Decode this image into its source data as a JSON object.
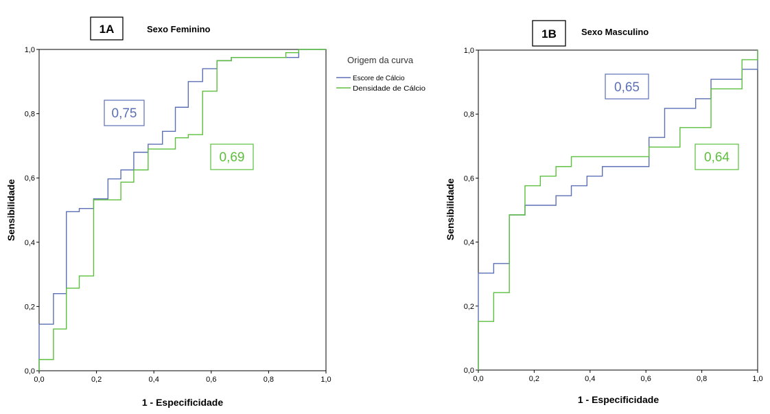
{
  "colors": {
    "escore": "#5b6fb5",
    "densidade": "#5bbf3c"
  },
  "chart_data": [
    {
      "type": "line",
      "panel": "1A",
      "title": "Sexo Feminino",
      "xlabel": "1 - Especificidade",
      "ylabel": "Sensibilidade",
      "xlim": [
        0,
        1
      ],
      "ylim": [
        0,
        1
      ],
      "xticks": [
        "0,0",
        "0,2",
        "0,4",
        "0,6",
        "0,8",
        "1,0"
      ],
      "yticks": [
        "0,0",
        "0,2",
        "0,4",
        "0,6",
        "0,8",
        "1,0"
      ],
      "grid": false,
      "legend": {
        "title": "Origem da curva",
        "placement": "top-right",
        "entries": [
          "Escore de Cálcio",
          "Densidade de Cálcio"
        ]
      },
      "annotations": [
        {
          "text": "0,75",
          "series": "escore"
        },
        {
          "text": "0,69",
          "series": "densidade"
        }
      ],
      "series": [
        {
          "name": "Escore de Cálcio",
          "key": "escore",
          "points": [
            [
              0,
              0
            ],
            [
              0,
              0.145
            ],
            [
              0.05,
              0.145
            ],
            [
              0.05,
              0.24
            ],
            [
              0.095,
              0.24
            ],
            [
              0.095,
              0.495
            ],
            [
              0.14,
              0.495
            ],
            [
              0.14,
              0.505
            ],
            [
              0.19,
              0.505
            ],
            [
              0.19,
              0.535
            ],
            [
              0.24,
              0.535
            ],
            [
              0.24,
              0.597
            ],
            [
              0.285,
              0.597
            ],
            [
              0.285,
              0.625
            ],
            [
              0.33,
              0.625
            ],
            [
              0.33,
              0.68
            ],
            [
              0.38,
              0.68
            ],
            [
              0.38,
              0.705
            ],
            [
              0.43,
              0.705
            ],
            [
              0.43,
              0.745
            ],
            [
              0.475,
              0.745
            ],
            [
              0.475,
              0.82
            ],
            [
              0.52,
              0.82
            ],
            [
              0.52,
              0.9
            ],
            [
              0.57,
              0.9
            ],
            [
              0.57,
              0.94
            ],
            [
              0.62,
              0.94
            ],
            [
              0.62,
              0.965
            ],
            [
              0.67,
              0.965
            ],
            [
              0.67,
              0.975
            ],
            [
              0.905,
              0.975
            ],
            [
              0.905,
              1.0
            ],
            [
              1.0,
              1.0
            ]
          ]
        },
        {
          "name": "Densidade de Cálcio",
          "key": "densidade",
          "points": [
            [
              0,
              0
            ],
            [
              0,
              0.035
            ],
            [
              0.05,
              0.035
            ],
            [
              0.05,
              0.13
            ],
            [
              0.095,
              0.13
            ],
            [
              0.095,
              0.257
            ],
            [
              0.14,
              0.257
            ],
            [
              0.14,
              0.295
            ],
            [
              0.19,
              0.295
            ],
            [
              0.19,
              0.532
            ],
            [
              0.285,
              0.532
            ],
            [
              0.285,
              0.587
            ],
            [
              0.33,
              0.587
            ],
            [
              0.33,
              0.625
            ],
            [
              0.38,
              0.625
            ],
            [
              0.38,
              0.69
            ],
            [
              0.475,
              0.69
            ],
            [
              0.475,
              0.725
            ],
            [
              0.52,
              0.725
            ],
            [
              0.52,
              0.735
            ],
            [
              0.57,
              0.735
            ],
            [
              0.57,
              0.87
            ],
            [
              0.62,
              0.87
            ],
            [
              0.62,
              0.965
            ],
            [
              0.67,
              0.965
            ],
            [
              0.67,
              0.975
            ],
            [
              0.86,
              0.975
            ],
            [
              0.86,
              0.99
            ],
            [
              0.905,
              0.99
            ],
            [
              0.905,
              1.0
            ],
            [
              1.0,
              1.0
            ]
          ]
        }
      ]
    },
    {
      "type": "line",
      "panel": "1B",
      "title": "Sexo Masculino",
      "xlabel": "1 - Especificidade",
      "ylabel": "Sensibilidade",
      "xlim": [
        0,
        1
      ],
      "ylim": [
        0,
        1
      ],
      "xticks": [
        "0,0",
        "0,2",
        "0,4",
        "0,6",
        "0,8",
        "1,0"
      ],
      "yticks": [
        "0,0",
        "0,2",
        "0,4",
        "0,6",
        "0,8",
        "1,0"
      ],
      "grid": false,
      "annotations": [
        {
          "text": "0,65",
          "series": "escore"
        },
        {
          "text": "0,64",
          "series": "densidade"
        }
      ],
      "series": [
        {
          "name": "Escore de Cálcio",
          "key": "escore",
          "points": [
            [
              0,
              0
            ],
            [
              0,
              0.303
            ],
            [
              0.055,
              0.303
            ],
            [
              0.055,
              0.333
            ],
            [
              0.111,
              0.333
            ],
            [
              0.111,
              0.485
            ],
            [
              0.167,
              0.485
            ],
            [
              0.167,
              0.515
            ],
            [
              0.278,
              0.515
            ],
            [
              0.278,
              0.545
            ],
            [
              0.333,
              0.545
            ],
            [
              0.333,
              0.576
            ],
            [
              0.389,
              0.576
            ],
            [
              0.389,
              0.606
            ],
            [
              0.444,
              0.606
            ],
            [
              0.444,
              0.636
            ],
            [
              0.611,
              0.636
            ],
            [
              0.611,
              0.727
            ],
            [
              0.667,
              0.727
            ],
            [
              0.667,
              0.818
            ],
            [
              0.778,
              0.818
            ],
            [
              0.778,
              0.848
            ],
            [
              0.833,
              0.848
            ],
            [
              0.833,
              0.909
            ],
            [
              0.944,
              0.909
            ],
            [
              0.944,
              0.94
            ],
            [
              1.0,
              0.94
            ],
            [
              1.0,
              1.0
            ]
          ]
        },
        {
          "name": "Densidade de Cálcio",
          "key": "densidade",
          "points": [
            [
              0,
              0
            ],
            [
              0,
              0.152
            ],
            [
              0.055,
              0.152
            ],
            [
              0.055,
              0.242
            ],
            [
              0.111,
              0.242
            ],
            [
              0.111,
              0.485
            ],
            [
              0.167,
              0.485
            ],
            [
              0.167,
              0.576
            ],
            [
              0.222,
              0.576
            ],
            [
              0.222,
              0.606
            ],
            [
              0.278,
              0.606
            ],
            [
              0.278,
              0.636
            ],
            [
              0.333,
              0.636
            ],
            [
              0.333,
              0.667
            ],
            [
              0.611,
              0.667
            ],
            [
              0.611,
              0.697
            ],
            [
              0.722,
              0.697
            ],
            [
              0.722,
              0.758
            ],
            [
              0.833,
              0.758
            ],
            [
              0.833,
              0.879
            ],
            [
              0.944,
              0.879
            ],
            [
              0.944,
              0.97
            ],
            [
              1.0,
              0.97
            ],
            [
              1.0,
              1.0
            ]
          ]
        }
      ]
    }
  ]
}
